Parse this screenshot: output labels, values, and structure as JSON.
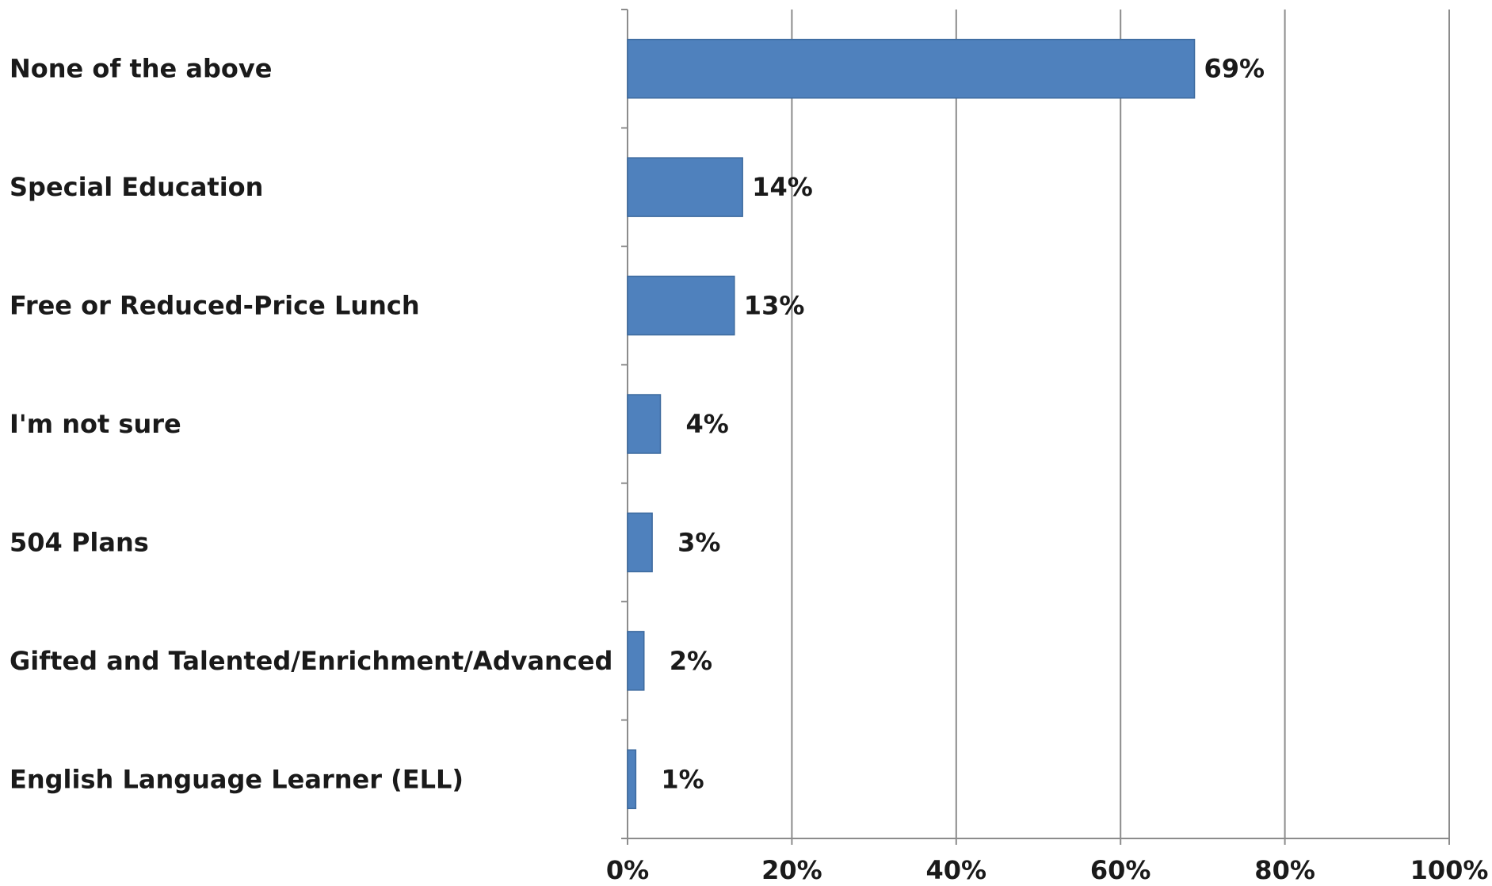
{
  "chart_data": {
    "type": "bar",
    "orientation": "horizontal",
    "categories": [
      "None of the above",
      "Special Education",
      "Free or Reduced-Price Lunch",
      "I'm not sure",
      "504 Plans",
      "Gifted and Talented/Enrichment/Advanced",
      "English Language Learner (ELL)"
    ],
    "values": [
      69,
      14,
      13,
      4,
      3,
      2,
      1
    ],
    "value_labels": [
      "69%",
      "14%",
      "13%",
      "4%",
      "3%",
      "2%",
      "1%"
    ],
    "color": "#4f81bd",
    "xlim": [
      0,
      100
    ],
    "xticks": [
      {
        "value": 0,
        "label": "0%"
      },
      {
        "value": 20,
        "label": "20%"
      },
      {
        "value": 40,
        "label": "40%"
      },
      {
        "value": 60,
        "label": "60%"
      },
      {
        "value": 80,
        "label": "80%"
      },
      {
        "value": 100,
        "label": "100%"
      }
    ],
    "grid": true
  }
}
